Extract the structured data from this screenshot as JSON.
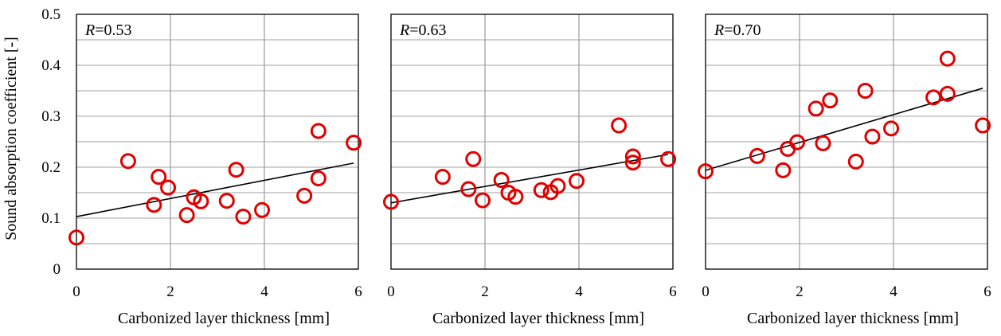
{
  "chart_data": [
    {
      "type": "scatter",
      "r_prefix": "R",
      "r_value": "=0.53",
      "xlabel": "Carbonized layer thickness [mm]",
      "ylabel": "Sound absorption coefficient [-]",
      "xlim": [
        0,
        6
      ],
      "ylim": [
        0,
        0.5
      ],
      "xticks": [
        "0",
        "2",
        "4",
        "6"
      ],
      "yticks": [
        "0",
        "0.1",
        "0.2",
        "0.3",
        "0.4",
        "0.5"
      ],
      "x": [
        0.0,
        1.1,
        1.65,
        1.75,
        1.95,
        2.35,
        2.5,
        2.65,
        3.2,
        3.4,
        3.55,
        3.95,
        4.85,
        5.15,
        5.15,
        5.9
      ],
      "y": [
        0.062,
        0.212,
        0.126,
        0.181,
        0.16,
        0.106,
        0.141,
        0.133,
        0.134,
        0.195,
        0.103,
        0.116,
        0.144,
        0.271,
        0.178,
        0.248
      ],
      "trend": {
        "x": [
          0,
          5.9
        ],
        "y": [
          0.103,
          0.208
        ]
      }
    },
    {
      "type": "scatter",
      "r_prefix": "R",
      "r_value": "=0.63",
      "xlabel": "Carbonized layer thickness [mm]",
      "ylabel": "",
      "xlim": [
        0,
        6
      ],
      "ylim": [
        0,
        0.5
      ],
      "xticks": [
        "0",
        "2",
        "4",
        "6"
      ],
      "yticks": [],
      "x": [
        0.0,
        1.1,
        1.65,
        1.75,
        1.95,
        2.35,
        2.5,
        2.65,
        3.2,
        3.4,
        3.55,
        3.95,
        4.85,
        5.15,
        5.15,
        5.9
      ],
      "y": [
        0.132,
        0.181,
        0.157,
        0.216,
        0.135,
        0.175,
        0.15,
        0.142,
        0.155,
        0.151,
        0.163,
        0.173,
        0.282,
        0.221,
        0.209,
        0.216
      ],
      "trend": {
        "x": [
          0,
          5.9
        ],
        "y": [
          0.13,
          0.225
        ]
      }
    },
    {
      "type": "scatter",
      "r_prefix": "R",
      "r_value": "=0.70",
      "xlabel": "Carbonized layer thickness [mm]",
      "ylabel": "",
      "xlim": [
        0,
        6
      ],
      "ylim": [
        0,
        0.5
      ],
      "xticks": [
        "0",
        "2",
        "4",
        "6"
      ],
      "yticks": [],
      "x": [
        0.0,
        1.1,
        1.65,
        1.75,
        1.95,
        2.35,
        2.5,
        2.65,
        3.2,
        3.4,
        3.55,
        3.95,
        4.85,
        5.15,
        5.15,
        5.9
      ],
      "y": [
        0.192,
        0.222,
        0.194,
        0.236,
        0.249,
        0.315,
        0.247,
        0.331,
        0.211,
        0.35,
        0.26,
        0.276,
        0.337,
        0.344,
        0.413,
        0.282
      ],
      "trend": {
        "x": [
          0,
          5.9
        ],
        "y": [
          0.194,
          0.355
        ]
      }
    }
  ],
  "colors": {
    "marker": "#e00000",
    "trend": "#000000",
    "grid": "#a0a0a0",
    "frame": "#000000"
  }
}
